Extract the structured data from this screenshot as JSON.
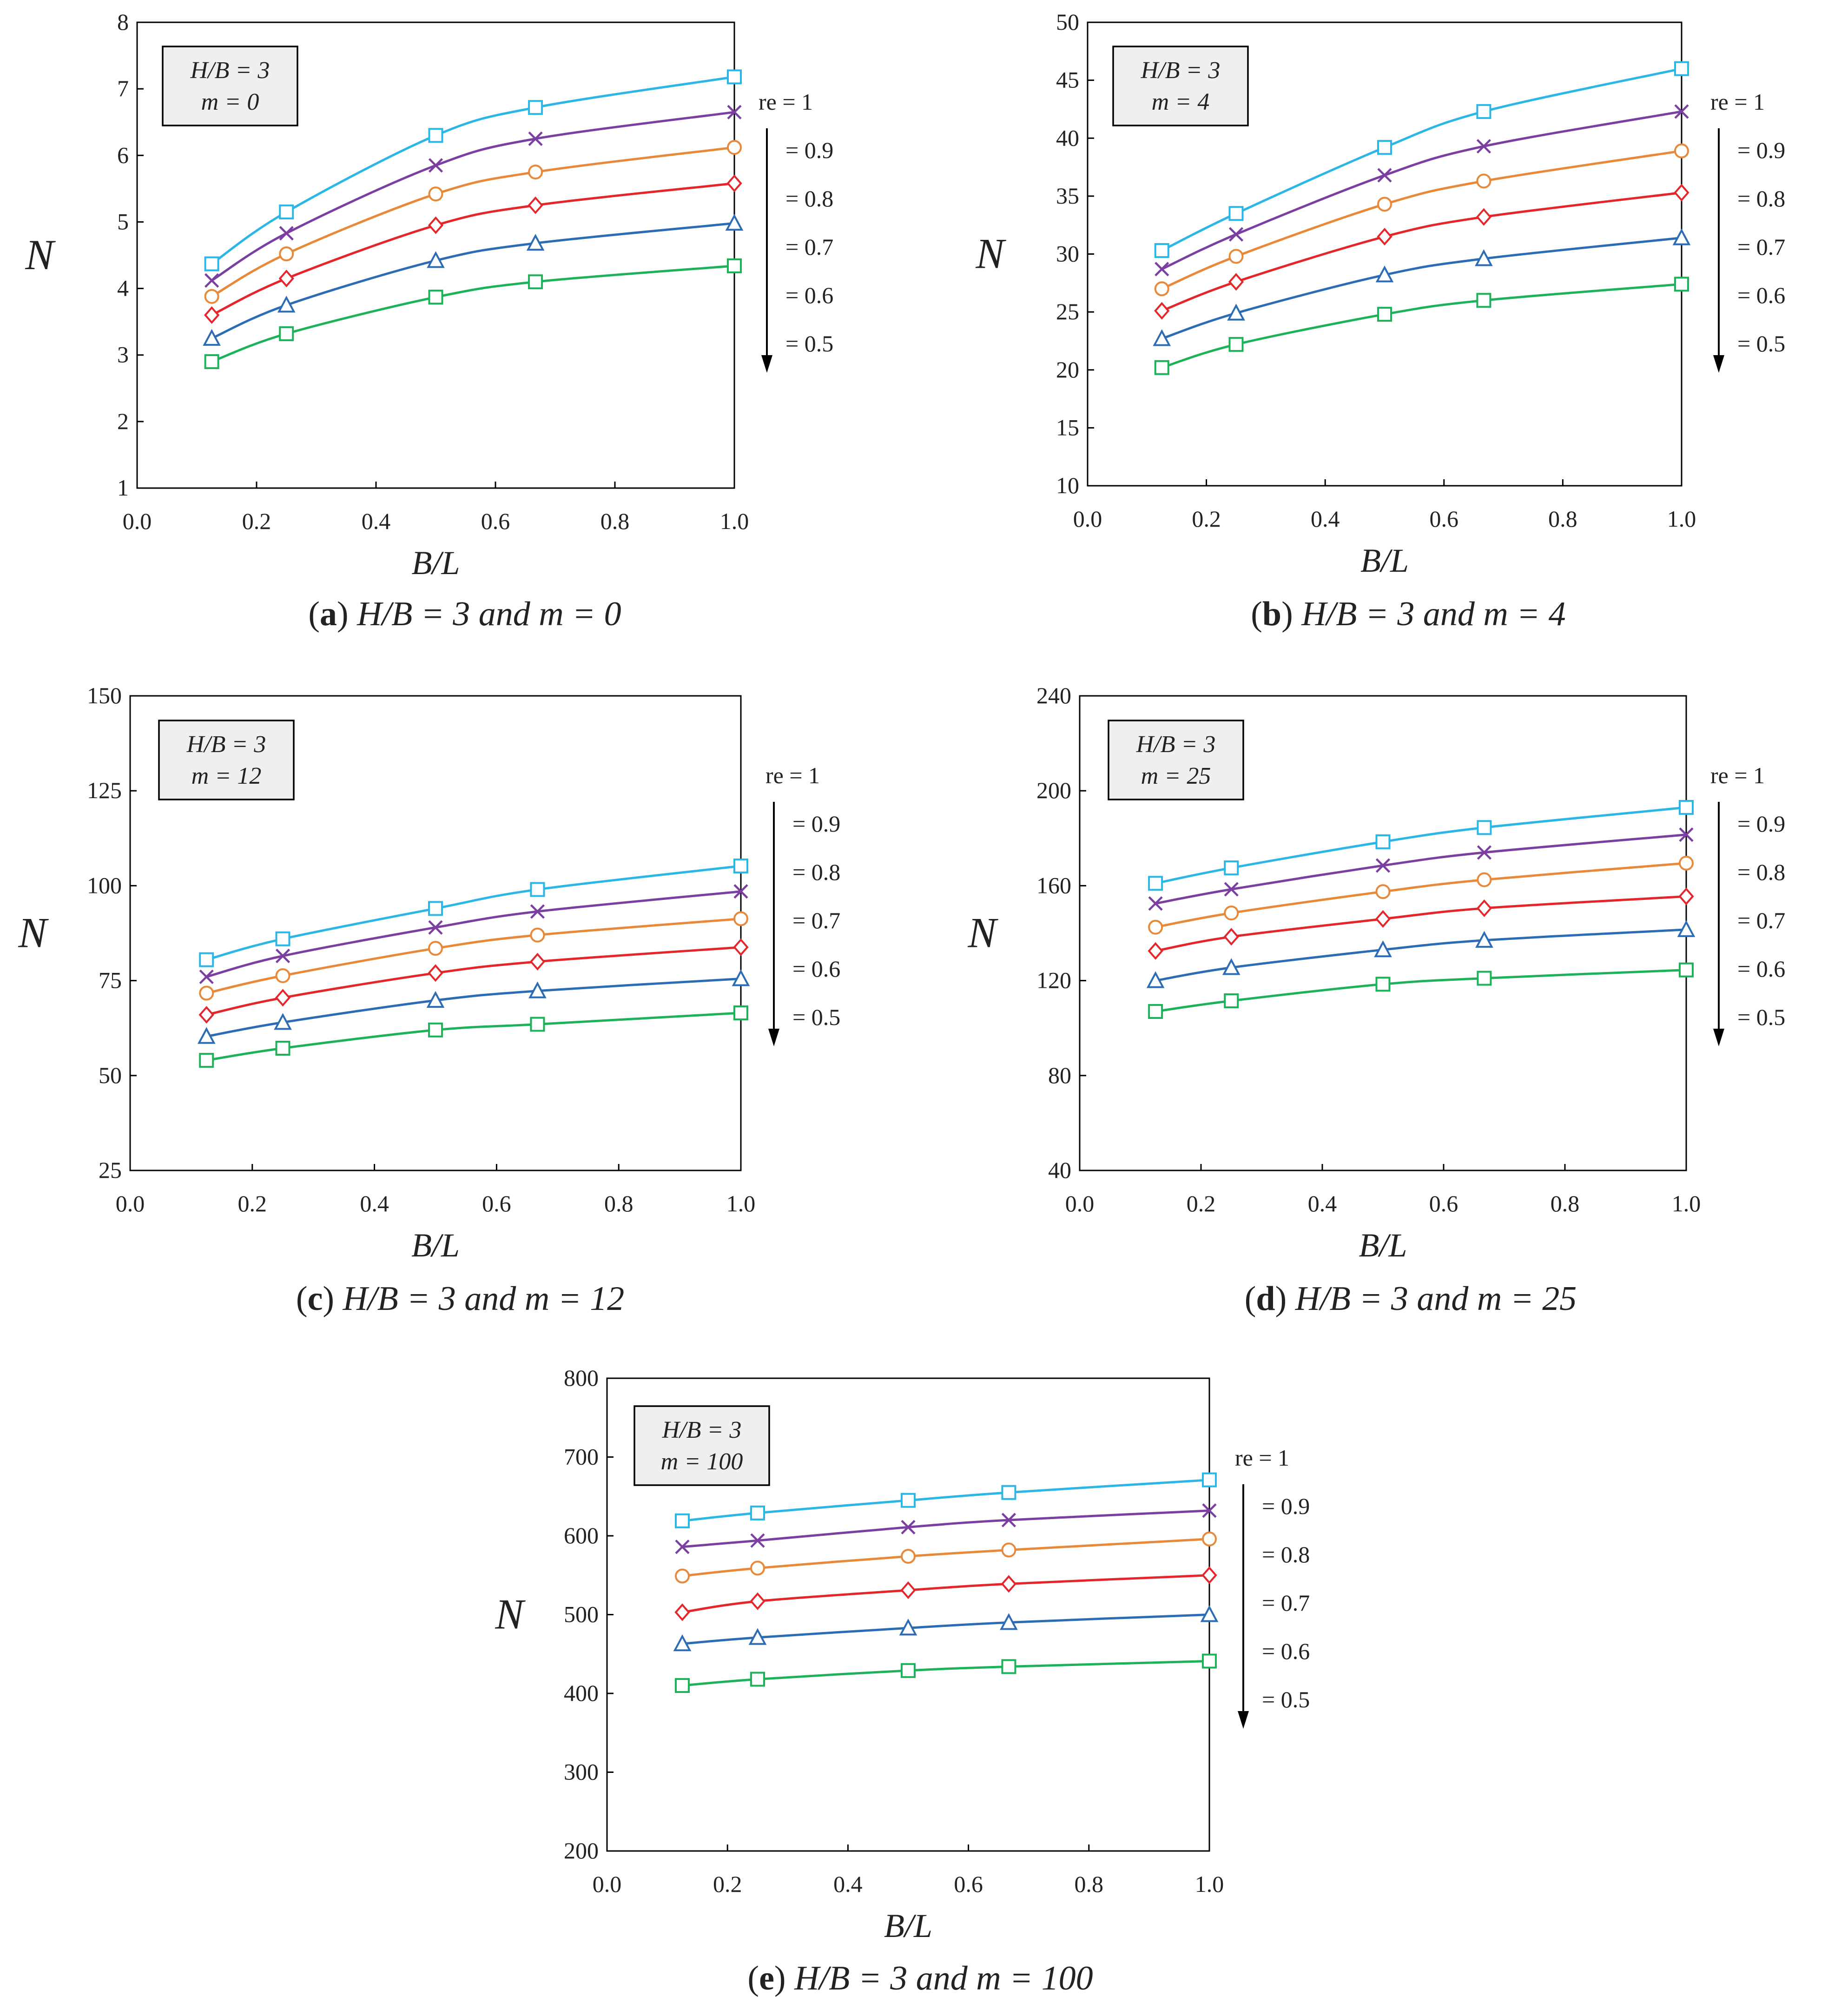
{
  "colors": {
    "re_1": "#2BB6E6",
    "re_0.9": "#7A3FA0",
    "re_0.8": "#E8893A",
    "re_0.7": "#E4262A",
    "re_0.6": "#2C6CB5",
    "re_0.5": "#1DB15A"
  },
  "chart_data": [
    {
      "id": "a",
      "type": "line",
      "caption": {
        "letter": "a",
        "text": "H/B = 3 and m = 0"
      },
      "xlabel": "B/L",
      "ylabel": "N",
      "xlim": [
        0.0,
        1.0
      ],
      "ylim": [
        1,
        8
      ],
      "xticks": [
        "0.0",
        "0.2",
        "0.4",
        "0.6",
        "0.8",
        "1.0"
      ],
      "yticks": [
        "1",
        "2",
        "3",
        "4",
        "5",
        "6",
        "7",
        "8"
      ],
      "grid": false,
      "annotation_box": [
        "H/B = 3",
        "m = 0"
      ],
      "legend_labels": [
        "re = 1",
        "= 0.9",
        "= 0.8",
        "= 0.7",
        "= 0.6",
        "= 0.5"
      ],
      "x": [
        0.125,
        0.25,
        0.5,
        0.667,
        1.0
      ],
      "series": [
        {
          "name": "re = 1",
          "marker": "square",
          "color": "#2BB6E6",
          "values": [
            4.37,
            5.15,
            6.3,
            6.72,
            7.18
          ]
        },
        {
          "name": "re = 0.9",
          "marker": "x",
          "color": "#7A3FA0",
          "values": [
            4.12,
            4.83,
            5.85,
            6.25,
            6.65
          ]
        },
        {
          "name": "re = 0.8",
          "marker": "circle",
          "color": "#E8893A",
          "values": [
            3.88,
            4.52,
            5.42,
            5.75,
            6.12
          ]
        },
        {
          "name": "re = 0.7",
          "marker": "diamond",
          "color": "#E4262A",
          "values": [
            3.6,
            4.15,
            4.95,
            5.25,
            5.58
          ]
        },
        {
          "name": "re = 0.6",
          "marker": "triangle",
          "color": "#2C6CB5",
          "values": [
            3.25,
            3.75,
            4.42,
            4.68,
            4.98
          ]
        },
        {
          "name": "re = 0.5",
          "marker": "square",
          "color": "#1DB15A",
          "values": [
            2.9,
            3.32,
            3.87,
            4.1,
            4.34
          ]
        }
      ]
    },
    {
      "id": "b",
      "type": "line",
      "caption": {
        "letter": "b",
        "text": "H/B = 3 and m = 4"
      },
      "xlabel": "B/L",
      "ylabel": "N",
      "xlim": [
        0.0,
        1.0
      ],
      "ylim": [
        10,
        50
      ],
      "xticks": [
        "0.0",
        "0.2",
        "0.4",
        "0.6",
        "0.8",
        "1.0"
      ],
      "yticks": [
        "10",
        "15",
        "20",
        "25",
        "30",
        "35",
        "40",
        "45",
        "50"
      ],
      "grid": false,
      "annotation_box": [
        "H/B = 3",
        "m = 4"
      ],
      "legend_labels": [
        "re = 1",
        "= 0.9",
        "= 0.8",
        "= 0.7",
        "= 0.6",
        "= 0.5"
      ],
      "x": [
        0.125,
        0.25,
        0.5,
        0.667,
        1.0
      ],
      "series": [
        {
          "name": "re = 1",
          "marker": "square",
          "color": "#2BB6E6",
          "values": [
            30.3,
            33.5,
            39.2,
            42.3,
            46.0
          ]
        },
        {
          "name": "re = 0.9",
          "marker": "x",
          "color": "#7A3FA0",
          "values": [
            28.7,
            31.7,
            36.8,
            39.3,
            42.3
          ]
        },
        {
          "name": "re = 0.8",
          "marker": "circle",
          "color": "#E8893A",
          "values": [
            27.0,
            29.8,
            34.3,
            36.3,
            38.9
          ]
        },
        {
          "name": "re = 0.7",
          "marker": "diamond",
          "color": "#E4262A",
          "values": [
            25.1,
            27.6,
            31.5,
            33.2,
            35.3
          ]
        },
        {
          "name": "re = 0.6",
          "marker": "triangle",
          "color": "#2C6CB5",
          "values": [
            22.7,
            24.9,
            28.2,
            29.6,
            31.4
          ]
        },
        {
          "name": "re = 0.5",
          "marker": "square",
          "color": "#1DB15A",
          "values": [
            20.2,
            22.2,
            24.8,
            26.0,
            27.4
          ]
        }
      ]
    },
    {
      "id": "c",
      "type": "line",
      "caption": {
        "letter": "c",
        "text": "H/B = 3 and m = 12"
      },
      "xlabel": "B/L",
      "ylabel": "N",
      "xlim": [
        0.0,
        1.0
      ],
      "ylim": [
        25,
        150
      ],
      "xticks": [
        "0.0",
        "0.2",
        "0.4",
        "0.6",
        "0.8",
        "1.0"
      ],
      "yticks": [
        "25",
        "50",
        "75",
        "100",
        "125",
        "150"
      ],
      "grid": false,
      "annotation_box": [
        "H/B = 3",
        "m = 12"
      ],
      "legend_labels": [
        "re = 1",
        "= 0.9",
        "= 0.8",
        "= 0.7",
        "= 0.6",
        "= 0.5"
      ],
      "x": [
        0.125,
        0.25,
        0.5,
        0.667,
        1.0
      ],
      "series": [
        {
          "name": "re = 1",
          "marker": "square",
          "color": "#2BB6E6",
          "values": [
            80.5,
            86.0,
            94.0,
            99.0,
            105.2
          ]
        },
        {
          "name": "re = 0.9",
          "marker": "x",
          "color": "#7A3FA0",
          "values": [
            76.0,
            81.5,
            89.0,
            93.2,
            98.5
          ]
        },
        {
          "name": "re = 0.8",
          "marker": "circle",
          "color": "#E8893A",
          "values": [
            71.7,
            76.3,
            83.5,
            87.0,
            91.3
          ]
        },
        {
          "name": "re = 0.7",
          "marker": "diamond",
          "color": "#E4262A",
          "values": [
            66.0,
            70.5,
            77.0,
            80.0,
            83.8
          ]
        },
        {
          "name": "re = 0.6",
          "marker": "triangle",
          "color": "#2C6CB5",
          "values": [
            60.3,
            64.0,
            69.8,
            72.3,
            75.5
          ]
        },
        {
          "name": "re = 0.5",
          "marker": "square",
          "color": "#1DB15A",
          "values": [
            54.0,
            57.2,
            62.0,
            63.5,
            66.5
          ]
        }
      ]
    },
    {
      "id": "d",
      "type": "line",
      "caption": {
        "letter": "d",
        "text": "H/B = 3 and m = 25"
      },
      "xlabel": "B/L",
      "ylabel": "N",
      "xlim": [
        0.0,
        1.0
      ],
      "ylim": [
        40,
        240
      ],
      "xticks": [
        "0.0",
        "0.2",
        "0.4",
        "0.6",
        "0.8",
        "1.0"
      ],
      "yticks": [
        "40",
        "80",
        "120",
        "160",
        "200",
        "240"
      ],
      "grid": false,
      "annotation_box": [
        "H/B = 3",
        "m = 25"
      ],
      "legend_labels": [
        "re = 1",
        "= 0.9",
        "= 0.8",
        "= 0.7",
        "= 0.6",
        "= 0.5"
      ],
      "x": [
        0.125,
        0.25,
        0.5,
        0.667,
        1.0
      ],
      "series": [
        {
          "name": "re = 1",
          "marker": "square",
          "color": "#2BB6E6",
          "values": [
            161.0,
            167.5,
            178.5,
            184.5,
            193.0
          ]
        },
        {
          "name": "re = 0.9",
          "marker": "x",
          "color": "#7A3FA0",
          "values": [
            152.5,
            158.5,
            168.5,
            174.0,
            181.5
          ]
        },
        {
          "name": "re = 0.8",
          "marker": "circle",
          "color": "#E8893A",
          "values": [
            142.5,
            148.5,
            157.5,
            162.5,
            169.5
          ]
        },
        {
          "name": "re = 0.7",
          "marker": "diamond",
          "color": "#E4262A",
          "values": [
            132.5,
            138.5,
            146.0,
            150.5,
            155.5
          ]
        },
        {
          "name": "re = 0.6",
          "marker": "triangle",
          "color": "#2C6CB5",
          "values": [
            120.0,
            125.5,
            133.0,
            137.0,
            141.5
          ]
        },
        {
          "name": "re = 0.5",
          "marker": "square",
          "color": "#1DB15A",
          "values": [
            107.0,
            111.5,
            118.5,
            121.0,
            124.5
          ]
        }
      ]
    },
    {
      "id": "e",
      "type": "line",
      "caption": {
        "letter": "e",
        "text": "H/B = 3 and m = 100"
      },
      "xlabel": "B/L",
      "ylabel": "N",
      "xlim": [
        0.0,
        1.0
      ],
      "ylim": [
        200,
        800
      ],
      "xticks": [
        "0.0",
        "0.2",
        "0.4",
        "0.6",
        "0.8",
        "1.0"
      ],
      "yticks": [
        "200",
        "300",
        "400",
        "500",
        "600",
        "700",
        "800"
      ],
      "grid": false,
      "annotation_box": [
        "H/B = 3",
        "m = 100"
      ],
      "legend_labels": [
        "re = 1",
        "= 0.9",
        "= 0.8",
        "= 0.7",
        "= 0.6",
        "= 0.5"
      ],
      "x": [
        0.125,
        0.25,
        0.5,
        0.667,
        1.0
      ],
      "series": [
        {
          "name": "re = 1",
          "marker": "square",
          "color": "#2BB6E6",
          "values": [
            619,
            629,
            645,
            655,
            671
          ]
        },
        {
          "name": "re = 0.9",
          "marker": "x",
          "color": "#7A3FA0",
          "values": [
            586,
            594,
            611,
            620,
            632
          ]
        },
        {
          "name": "re = 0.8",
          "marker": "circle",
          "color": "#E8893A",
          "values": [
            549,
            559,
            574,
            582,
            596
          ]
        },
        {
          "name": "re = 0.7",
          "marker": "diamond",
          "color": "#E4262A",
          "values": [
            503,
            517,
            531,
            539,
            550
          ]
        },
        {
          "name": "re = 0.6",
          "marker": "triangle",
          "color": "#2C6CB5",
          "values": [
            463,
            471,
            483,
            490,
            500
          ]
        },
        {
          "name": "re = 0.5",
          "marker": "square",
          "color": "#1DB15A",
          "values": [
            410,
            418,
            429,
            434,
            441
          ]
        }
      ]
    }
  ]
}
